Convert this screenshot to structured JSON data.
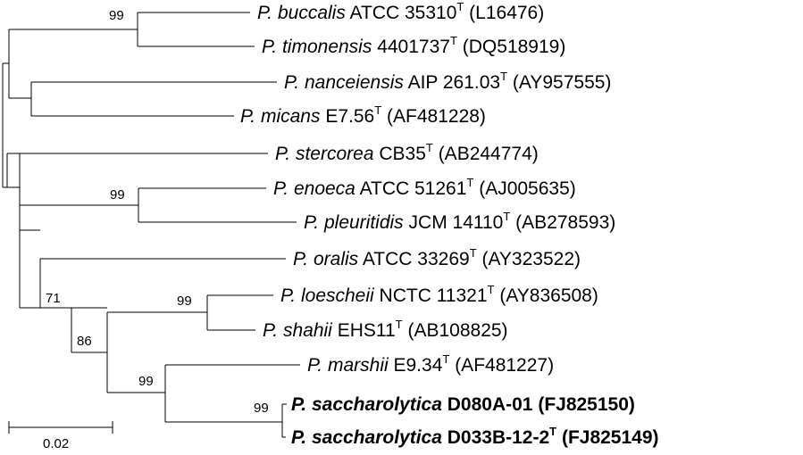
{
  "taxa": [
    {
      "id": "buccalis",
      "species": "P. buccalis",
      "strain": "ATCC 35310",
      "type_mark": "T",
      "accession": "(L16476)",
      "bold": false
    },
    {
      "id": "timonensis",
      "species": "P. timonensis",
      "strain": "4401737",
      "type_mark": "T",
      "accession": "(DQ518919)",
      "bold": false
    },
    {
      "id": "nanceiensis",
      "species": "P. nanceiensis",
      "strain": "AIP 261.03",
      "type_mark": "T",
      "accession": "(AY957555)",
      "bold": false
    },
    {
      "id": "micans",
      "species": "P. micans",
      "strain": "E7.56",
      "type_mark": "T",
      "accession": "(AF481228)",
      "bold": false
    },
    {
      "id": "stercorea",
      "species": "P. stercorea",
      "strain": "CB35",
      "type_mark": "T",
      "accession": "(AB244774)",
      "bold": false
    },
    {
      "id": "enoeca",
      "species": "P. enoeca",
      "strain": "ATCC 51261",
      "type_mark": "T",
      "accession": "(AJ005635)",
      "bold": false
    },
    {
      "id": "pleuritidis",
      "species": "P. pleuritidis",
      "strain": "JCM 14110",
      "type_mark": "T",
      "accession": "(AB278593)",
      "bold": false
    },
    {
      "id": "oralis",
      "species": "P. oralis",
      "strain": "ATCC 33269",
      "type_mark": "T",
      "accession": "(AY323522)",
      "bold": false
    },
    {
      "id": "loescheii",
      "species": "P. loescheii",
      "strain": "NCTC 11321",
      "type_mark": "T",
      "accession": "(AY836508)",
      "bold": false
    },
    {
      "id": "shahii",
      "species": "P. shahii",
      "strain": "EHS11",
      "type_mark": "T",
      "accession": "(AB108825)",
      "bold": false
    },
    {
      "id": "marshii",
      "species": "P. marshii",
      "strain": "E9.34",
      "type_mark": "T",
      "accession": "(AF481227)",
      "bold": false
    },
    {
      "id": "sacch1",
      "species": "P. saccharolytica",
      "strain": "D080A-01",
      "type_mark": "",
      "accession": "(FJ825150)",
      "bold": true
    },
    {
      "id": "sacch2",
      "species": "P. saccharolytica",
      "strain": "D033B-12-2",
      "type_mark": "T",
      "accession": "(FJ825149)",
      "bold": true
    }
  ],
  "bootstrap": {
    "buccalis_timonensis": "99",
    "enoeca_pleuritidis": "99",
    "node_71": "71",
    "node_86": "86",
    "loescheii_shahii": "99",
    "marshii_saccharolytica": "99",
    "saccharolytica_pair": "99"
  },
  "scale_bar": {
    "label": "0.02"
  }
}
